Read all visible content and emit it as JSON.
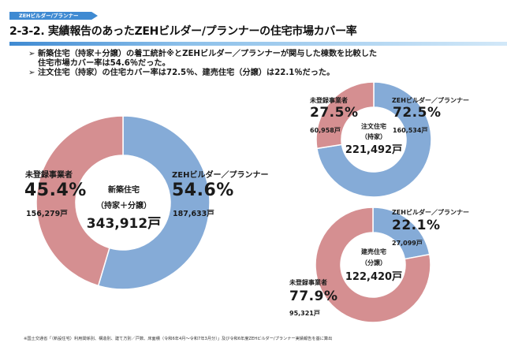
{
  "header": {
    "tag": "ZEHビルダー/プランナー",
    "title": "2-3-2. 実績報告のあったZEHビルダー/プランナーの住宅市場カバー率"
  },
  "bullets": [
    {
      "marker": "➢",
      "lines": [
        "新築住宅（持家＋分譲）の着工統計※とZEHビルダー／プランナーが関与した棟数を比較した",
        "住宅市場カバー率は54.6％だった。"
      ]
    },
    {
      "marker": "➢",
      "lines": [
        "注文住宅（持家）の住宅カバー率は72.5％、建売住宅（分譲）は22.1％だった。"
      ]
    }
  ],
  "colors": {
    "zeh": "#85abd7",
    "unregistered": "#d58f91",
    "accent": "#3f8ad2"
  },
  "chart_data": [
    {
      "type": "pie",
      "subtype": "donut",
      "title": "新築住宅（持家＋分譲）",
      "center_title": [
        "新築住宅",
        "（持家＋分譲）"
      ],
      "total": "343,912戸",
      "categories": [
        "ZEHビルダー／プランナー",
        "未登録事業者"
      ],
      "values": [
        54.6,
        45.4
      ],
      "value_labels": [
        "54.6%",
        "45.4%"
      ],
      "counts": [
        "187,633戸",
        "156,279戸"
      ]
    },
    {
      "type": "pie",
      "subtype": "donut",
      "title": "注文住宅（持家）",
      "center_title": [
        "注文住宅",
        "（持家）"
      ],
      "total": "221,492戸",
      "categories": [
        "ZEHビルダー／プランナー",
        "未登録事業者"
      ],
      "values": [
        72.5,
        27.5
      ],
      "value_labels": [
        "72.5%",
        "27.5%"
      ],
      "counts": [
        "160,534戸",
        "60,958戸"
      ]
    },
    {
      "type": "pie",
      "subtype": "donut",
      "title": "建売住宅（分譲）",
      "center_title": [
        "建売住宅",
        "（分譲）"
      ],
      "total": "122,420戸",
      "categories": [
        "ZEHビルダー／プランナー",
        "未登録事業者"
      ],
      "values": [
        22.1,
        77.9
      ],
      "value_labels": [
        "22.1%",
        "77.9%"
      ],
      "counts": [
        "27,099戸",
        "95,321戸"
      ]
    }
  ],
  "footnote": "※国土交通省「（新設住宅）利用関係別、構造別、建て方別／戸数、床面積（令和6年4月～令和7年3月分）」及び令和6年度ZEHビルダー/プランナー実績報告を基に算出"
}
